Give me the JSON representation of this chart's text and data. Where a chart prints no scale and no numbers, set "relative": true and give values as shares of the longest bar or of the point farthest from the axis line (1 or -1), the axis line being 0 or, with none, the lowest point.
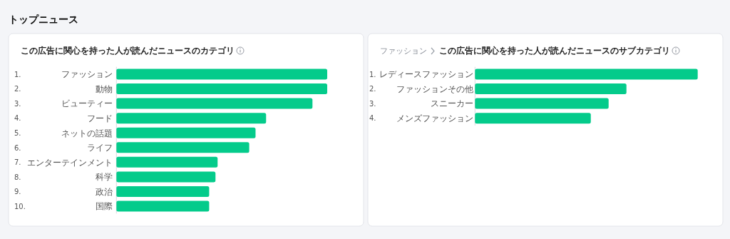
{
  "chart_data": [
    {
      "type": "other",
      "title": "トップニュース"
    },
    {
      "type": "bar",
      "orientation": "horizontal",
      "relative": true,
      "title": "この広告に関心を持った人が読んだニュースのカテゴリ",
      "categories": [
        "ファッション",
        "動物",
        "ビューティー",
        "フード",
        "ネットの話題",
        "ライフ",
        "エンターテインメント",
        "科学",
        "政治",
        "国際"
      ],
      "values": [
        1,
        1,
        0.93,
        0.71,
        0.66,
        0.63,
        0.48,
        0.47,
        0.44,
        0.44
      ],
      "color": "#04cb8b",
      "annotations": [
        "1.",
        "2.",
        "3.",
        "4.",
        "5.",
        "6.",
        "7.",
        "8.",
        "9.",
        "10."
      ]
    },
    {
      "type": "bar",
      "orientation": "horizontal",
      "relative": true,
      "subtitle": "ファッション",
      "title": "この広告に関心を持った人が読んだニュースのサブカテゴリ",
      "categories": [
        "レディースファッション",
        "ファッションその他",
        "スニーカー",
        "メンズファッション"
      ],
      "values": [
        1,
        0.68,
        0.6,
        0.52
      ],
      "color": "#04cb8b",
      "annotations": [
        "1.",
        "2.",
        "3.",
        "4."
      ]
    }
  ]
}
